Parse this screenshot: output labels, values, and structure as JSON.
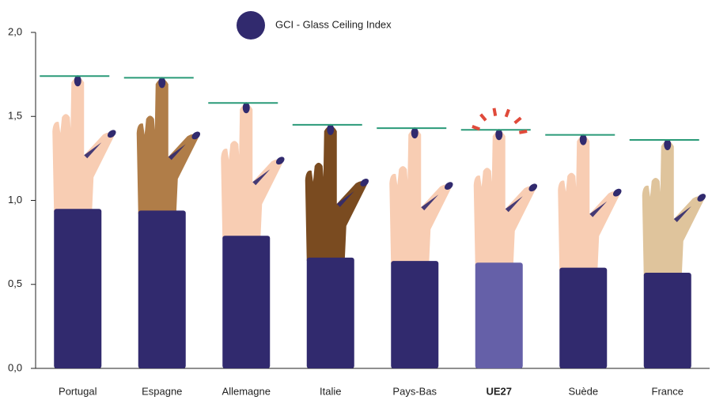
{
  "chart_data": {
    "type": "bar",
    "categories": [
      "Portugal",
      "Espagne",
      "Allemagne",
      "Italie",
      "Pays-Bas",
      "UE27",
      "Suède",
      "France"
    ],
    "series": [
      {
        "name": "GCI - Glass Ceiling Index",
        "color": "#312a6e",
        "values": [
          1.74,
          1.73,
          1.58,
          1.45,
          1.43,
          1.42,
          1.39,
          1.36
        ]
      }
    ],
    "sleeve_colors": [
      "#312a6e",
      "#312a6e",
      "#312a6e",
      "#312a6e",
      "#312a6e",
      "#6560a8",
      "#312a6e",
      "#312a6e"
    ],
    "skin_colors": [
      "#f8cdb3",
      "#b07d48",
      "#f8cdb3",
      "#7a4b20",
      "#f8cdb3",
      "#f8cdb3",
      "#f8cdb3",
      "#dfc49c"
    ],
    "line_color": "#2a9a78",
    "ylim": [
      0,
      2
    ],
    "yticks": [
      {
        "value": 0,
        "label": "0,0"
      },
      {
        "value": 0.5,
        "label": "0,5"
      },
      {
        "value": 1,
        "label": "1,0"
      },
      {
        "value": 1.5,
        "label": "1,5"
      },
      {
        "value": 2,
        "label": "2,0"
      }
    ],
    "grid": false
  }
}
